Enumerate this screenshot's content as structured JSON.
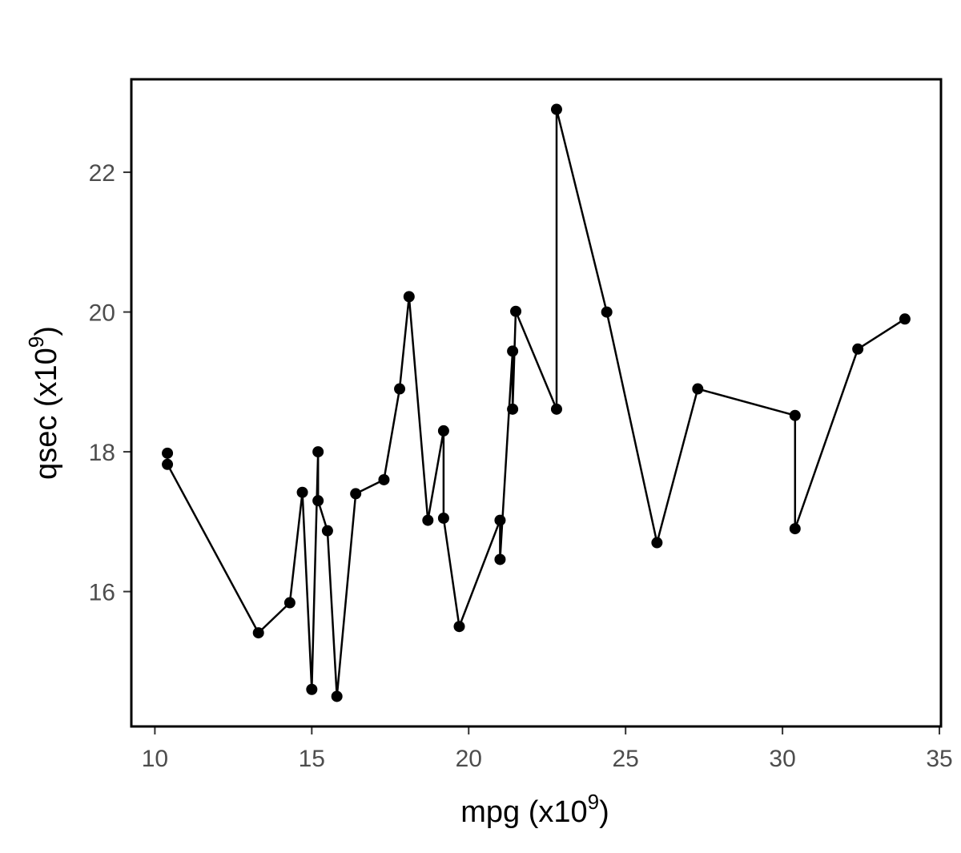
{
  "chart_data": {
    "type": "line",
    "title": "",
    "xlabel": "mpg (x10",
    "xlabel_sup": "9",
    "xlabel_close": ")",
    "ylabel": "qsec (x10",
    "ylabel_sup": "9",
    "ylabel_close": ")",
    "xlim": [
      9.25,
      35.05
    ],
    "ylim": [
      14.07,
      23.33
    ],
    "xticks": [
      10,
      15,
      20,
      25,
      30,
      35
    ],
    "yticks": [
      16,
      18,
      20,
      22
    ],
    "grid": false,
    "legend": "none",
    "colors": {
      "line": "#000000",
      "point": "#000000",
      "frame": "#000000"
    },
    "series": [
      {
        "x": [
          10.4,
          10.4,
          13.3,
          14.3,
          14.7,
          15.0,
          15.2,
          15.2,
          15.5,
          15.8,
          16.4,
          17.3,
          17.8,
          18.1,
          18.7,
          19.2,
          19.2,
          19.7,
          21.0,
          21.0,
          21.4,
          21.4,
          21.5,
          22.8,
          22.8,
          24.4,
          26.0,
          27.3,
          30.4,
          30.4,
          32.4,
          33.9
        ],
        "y": [
          17.98,
          17.82,
          15.41,
          15.84,
          17.42,
          14.6,
          18.0,
          17.3,
          16.87,
          14.5,
          17.4,
          17.6,
          18.9,
          20.22,
          17.02,
          18.3,
          17.05,
          15.5,
          17.02,
          16.46,
          19.44,
          18.61,
          20.01,
          18.61,
          22.9,
          20.0,
          16.7,
          18.9,
          18.52,
          16.9,
          19.47,
          19.9
        ]
      }
    ]
  }
}
